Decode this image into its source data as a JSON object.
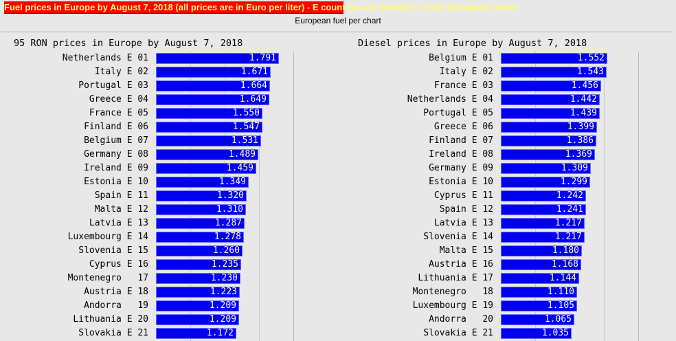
{
  "header": {
    "banner": "Fuel prices in Europe by August 7, 2018 (all prices are in Euro per liter) - E countries are members of the European Union",
    "subtitle": "European fuel per chart"
  },
  "colors": {
    "banner_bg": "#ff0000",
    "banner_text": "#ffff66",
    "bar": "#0000ee",
    "background": "#e8e8e8"
  },
  "chart_data": [
    {
      "type": "bar",
      "orientation": "horizontal",
      "title": "95 RON prices in Europe by August 7, 2018",
      "xlabel": "",
      "ylabel": "",
      "grid": true,
      "unit": "Euro per liter",
      "rows": [
        {
          "country": "Netherlands",
          "eu": "E",
          "rank": "01",
          "value": "1.791"
        },
        {
          "country": "Italy",
          "eu": "E",
          "rank": "02",
          "value": "1.671"
        },
        {
          "country": "Portugal",
          "eu": "E",
          "rank": "03",
          "value": "1.664"
        },
        {
          "country": "Greece",
          "eu": "E",
          "rank": "04",
          "value": "1.649"
        },
        {
          "country": "France",
          "eu": "E",
          "rank": "05",
          "value": "1.550"
        },
        {
          "country": "Finland",
          "eu": "E",
          "rank": "06",
          "value": "1.547"
        },
        {
          "country": "Belgium",
          "eu": "E",
          "rank": "07",
          "value": "1.531"
        },
        {
          "country": "Germany",
          "eu": "E",
          "rank": "08",
          "value": "1.489"
        },
        {
          "country": "Ireland",
          "eu": "E",
          "rank": "09",
          "value": "1.459"
        },
        {
          "country": "Estonia",
          "eu": "E",
          "rank": "10",
          "value": "1.349"
        },
        {
          "country": "Spain",
          "eu": "E",
          "rank": "11",
          "value": "1.320"
        },
        {
          "country": "Malta",
          "eu": "E",
          "rank": "12",
          "value": "1.310"
        },
        {
          "country": "Latvia",
          "eu": "E",
          "rank": "13",
          "value": "1.287"
        },
        {
          "country": "Luxembourg",
          "eu": "E",
          "rank": "14",
          "value": "1.278"
        },
        {
          "country": "Slovenia",
          "eu": "E",
          "rank": "15",
          "value": "1.260"
        },
        {
          "country": "Cyprus",
          "eu": "E",
          "rank": "16",
          "value": "1.235"
        },
        {
          "country": "Montenegro",
          "eu": " ",
          "rank": "17",
          "value": "1.230"
        },
        {
          "country": "Austria",
          "eu": "E",
          "rank": "18",
          "value": "1.223"
        },
        {
          "country": "Andorra",
          "eu": " ",
          "rank": "19",
          "value": "1.209"
        },
        {
          "country": "Lithuania",
          "eu": "E",
          "rank": "20",
          "value": "1.209"
        },
        {
          "country": "Slovakia",
          "eu": "E",
          "rank": "21",
          "value": "1.172"
        }
      ],
      "categories": [
        "Netherlands",
        "Italy",
        "Portugal",
        "Greece",
        "France",
        "Finland",
        "Belgium",
        "Germany",
        "Ireland",
        "Estonia",
        "Spain",
        "Malta",
        "Latvia",
        "Luxembourg",
        "Slovenia",
        "Cyprus",
        "Montenegro",
        "Austria",
        "Andorra",
        "Lithuania",
        "Slovakia"
      ],
      "values": [
        1.791,
        1.671,
        1.664,
        1.649,
        1.55,
        1.547,
        1.531,
        1.489,
        1.459,
        1.349,
        1.32,
        1.31,
        1.287,
        1.278,
        1.26,
        1.235,
        1.23,
        1.223,
        1.209,
        1.209,
        1.172
      ]
    },
    {
      "type": "bar",
      "orientation": "horizontal",
      "title": "Diesel prices in Europe by August 7, 2018",
      "xlabel": "",
      "ylabel": "",
      "grid": true,
      "unit": "Euro per liter",
      "rows": [
        {
          "country": "Belgium",
          "eu": "E",
          "rank": "01",
          "value": "1.552"
        },
        {
          "country": "Italy",
          "eu": "E",
          "rank": "02",
          "value": "1.543"
        },
        {
          "country": "France",
          "eu": "E",
          "rank": "03",
          "value": "1.456"
        },
        {
          "country": "Netherlands",
          "eu": "E",
          "rank": "04",
          "value": "1.442"
        },
        {
          "country": "Portugal",
          "eu": "E",
          "rank": "05",
          "value": "1.439"
        },
        {
          "country": "Greece",
          "eu": "E",
          "rank": "06",
          "value": "1.399"
        },
        {
          "country": "Finland",
          "eu": "E",
          "rank": "07",
          "value": "1.386"
        },
        {
          "country": "Ireland",
          "eu": "E",
          "rank": "08",
          "value": "1.369"
        },
        {
          "country": "Germany",
          "eu": "E",
          "rank": "09",
          "value": "1.309"
        },
        {
          "country": "Estonia",
          "eu": "E",
          "rank": "10",
          "value": "1.299"
        },
        {
          "country": "Cyprus",
          "eu": "E",
          "rank": "11",
          "value": "1.242"
        },
        {
          "country": "Spain",
          "eu": "E",
          "rank": "12",
          "value": "1.241"
        },
        {
          "country": "Latvia",
          "eu": "E",
          "rank": "13",
          "value": "1.217"
        },
        {
          "country": "Slovenia",
          "eu": "E",
          "rank": "14",
          "value": "1.217"
        },
        {
          "country": "Malta",
          "eu": "E",
          "rank": "15",
          "value": "1.180"
        },
        {
          "country": "Austria",
          "eu": "E",
          "rank": "16",
          "value": "1.168"
        },
        {
          "country": "Lithuania",
          "eu": "E",
          "rank": "17",
          "value": "1.144"
        },
        {
          "country": "Montenegro",
          "eu": " ",
          "rank": "18",
          "value": "1.110"
        },
        {
          "country": "Luxembourg",
          "eu": "E",
          "rank": "19",
          "value": "1.105"
        },
        {
          "country": "Andorra",
          "eu": " ",
          "rank": "20",
          "value": "1.065"
        },
        {
          "country": "Slovakia",
          "eu": "E",
          "rank": "21",
          "value": "1.035"
        }
      ],
      "categories": [
        "Belgium",
        "Italy",
        "France",
        "Netherlands",
        "Portugal",
        "Greece",
        "Finland",
        "Ireland",
        "Germany",
        "Estonia",
        "Cyprus",
        "Spain",
        "Latvia",
        "Slovenia",
        "Malta",
        "Austria",
        "Lithuania",
        "Montenegro",
        "Luxembourg",
        "Andorra",
        "Slovakia"
      ],
      "values": [
        1.552,
        1.543,
        1.456,
        1.442,
        1.439,
        1.399,
        1.386,
        1.369,
        1.309,
        1.299,
        1.242,
        1.241,
        1.217,
        1.217,
        1.18,
        1.168,
        1.144,
        1.11,
        1.105,
        1.065,
        1.035
      ]
    }
  ]
}
